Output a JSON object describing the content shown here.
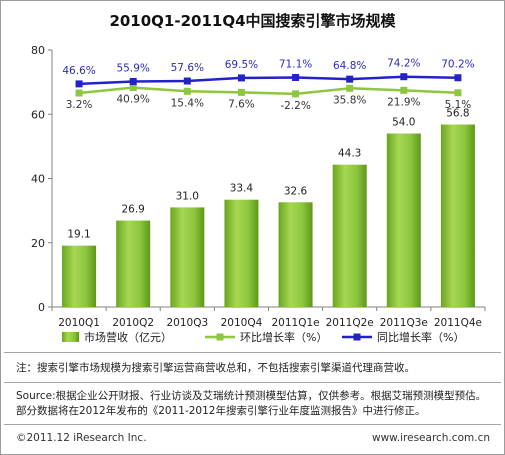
{
  "chart_data": {
    "type": "bar",
    "title": "2010Q1-2011Q4中国搜索引擎市场规模",
    "categories": [
      "2010Q1",
      "2010Q2",
      "2010Q3",
      "2010Q4",
      "2011Q1e",
      "2011Q2e",
      "2011Q3e",
      "2011Q4e"
    ],
    "ylim": [
      0,
      80
    ],
    "yticks": [
      0,
      20,
      40,
      60,
      80
    ],
    "grid": false,
    "legend": "bottom",
    "series": [
      {
        "name": "市场营收（亿元）",
        "type": "bar",
        "color": "#8dc63f",
        "values": [
          19.1,
          26.9,
          31.0,
          33.4,
          32.6,
          44.3,
          54.0,
          56.8
        ]
      },
      {
        "name": "环比增长率（%）",
        "type": "line",
        "marker": "square",
        "color": "#8dc63f",
        "label_suffix": "%",
        "values": [
          3.2,
          40.9,
          15.4,
          7.6,
          -2.2,
          35.8,
          21.9,
          5.1
        ]
      },
      {
        "name": "同比增长率（%）",
        "type": "line",
        "marker": "square",
        "color": "#2222c8",
        "label_suffix": "%",
        "values": [
          46.6,
          55.9,
          57.6,
          69.5,
          71.1,
          64.8,
          74.2,
          70.2
        ]
      }
    ]
  },
  "notes": {
    "note": "注：搜索引擎市场规模为搜索引擎运营商营收总和，不包括搜索引擎渠道代理商营收。",
    "source": "Source:根据企业公开财报、行业访谈及艾瑞统计预测模型估算，仅供参考。根据艾瑞预测模型预估。部分数据将在2012年发布的《2011-2012年搜索引擎行业年度监测报告》中进行修正。"
  },
  "footer": {
    "copyright": "©2011.12 iResearch Inc.",
    "website": "www.iresearch.com.cn"
  }
}
